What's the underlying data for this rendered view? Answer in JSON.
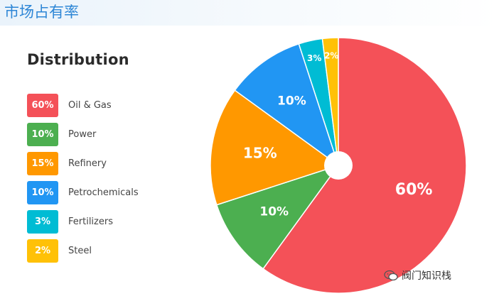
{
  "page_title": "市场占有率",
  "watermark": "阀门知识栈",
  "chart_data": {
    "type": "pie",
    "title": "Distribution",
    "slices": [
      {
        "label": "Oil & Gas",
        "value": 60,
        "display": "60%",
        "color": "#f45158"
      },
      {
        "label": "Power",
        "value": 10,
        "display": "10%",
        "color": "#4caf50"
      },
      {
        "label": "Refinery",
        "value": 15,
        "display": "15%",
        "color": "#ff9800"
      },
      {
        "label": "Petrochemicals",
        "value": 10,
        "display": "10%",
        "color": "#2196f3"
      },
      {
        "label": "Fertilizers",
        "value": 3,
        "display": "3%",
        "color": "#00bcd4"
      },
      {
        "label": "Steel",
        "value": 2,
        "display": "2%",
        "color": "#ffc107"
      }
    ],
    "legend_position": "left",
    "donut_hole": true
  }
}
